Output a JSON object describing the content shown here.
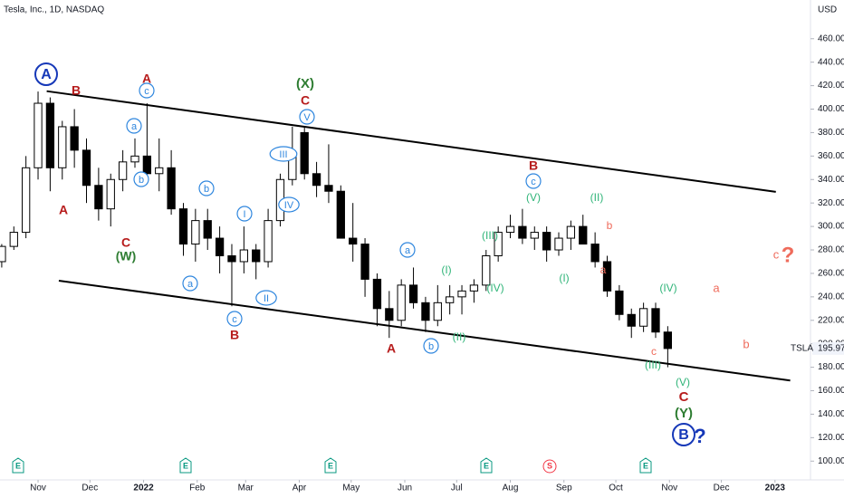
{
  "chart_data": {
    "type": "candlestick",
    "title": "Tesla, Inc., 1D, NASDAQ",
    "currency": "USD",
    "symbol": "TSLA",
    "x": [
      -21,
      -14,
      -7,
      0,
      7,
      14,
      21,
      28,
      35,
      42,
      49,
      56,
      63,
      70,
      77,
      84,
      91,
      98,
      105,
      112,
      119,
      126,
      133,
      140,
      147,
      154,
      161,
      168,
      175,
      182,
      189,
      196,
      203,
      210,
      217,
      224,
      231,
      238,
      245,
      252,
      259,
      266,
      273,
      280,
      287,
      294,
      301,
      308,
      315,
      322,
      329,
      336,
      343,
      350,
      357,
      364
    ],
    "open": [
      270,
      283,
      295,
      350,
      405,
      350,
      385,
      365,
      335,
      315,
      340,
      355,
      360,
      345,
      350,
      315,
      285,
      305,
      290,
      275,
      270,
      280,
      270,
      305,
      340,
      380,
      345,
      335,
      330,
      290,
      285,
      255,
      230,
      220,
      250,
      235,
      220,
      235,
      240,
      245,
      250,
      275,
      295,
      300,
      290,
      295,
      280,
      290,
      300,
      285,
      270,
      245,
      225,
      215,
      230,
      210
    ],
    "high": [
      285,
      300,
      360,
      415,
      410,
      390,
      400,
      375,
      350,
      345,
      365,
      375,
      405,
      375,
      365,
      320,
      315,
      315,
      300,
      285,
      300,
      285,
      315,
      345,
      385,
      385,
      355,
      370,
      335,
      320,
      290,
      260,
      245,
      255,
      265,
      240,
      250,
      250,
      250,
      255,
      280,
      300,
      310,
      315,
      300,
      300,
      295,
      305,
      310,
      295,
      275,
      250,
      230,
      235,
      235,
      215
    ],
    "low": [
      265,
      280,
      290,
      340,
      330,
      340,
      350,
      320,
      305,
      300,
      330,
      350,
      340,
      330,
      310,
      275,
      270,
      280,
      260,
      232,
      260,
      255,
      265,
      300,
      335,
      340,
      325,
      320,
      290,
      270,
      240,
      215,
      205,
      215,
      230,
      210,
      215,
      225,
      225,
      235,
      245,
      270,
      290,
      285,
      280,
      270,
      275,
      280,
      285,
      265,
      240,
      220,
      205,
      210,
      205,
      180
    ],
    "close": [
      283,
      295,
      350,
      405,
      350,
      385,
      365,
      335,
      315,
      340,
      355,
      360,
      345,
      350,
      315,
      285,
      305,
      290,
      275,
      270,
      280,
      270,
      305,
      340,
      360,
      345,
      335,
      330,
      290,
      285,
      255,
      230,
      220,
      250,
      235,
      220,
      235,
      240,
      245,
      250,
      275,
      295,
      300,
      290,
      295,
      280,
      290,
      300,
      285,
      270,
      245,
      225,
      215,
      230,
      210,
      195.97
    ],
    "up_color": "#ffffff",
    "down_color": "#000000",
    "wick_color": "#000000",
    "xlim": [
      -22,
      446
    ],
    "xticks": [
      {
        "value": 0,
        "label": "Nov"
      },
      {
        "value": 30,
        "label": "Dec"
      },
      {
        "value": 61,
        "label": "2022"
      },
      {
        "value": 92,
        "label": "Feb"
      },
      {
        "value": 120,
        "label": "Mar"
      },
      {
        "value": 151,
        "label": "Apr"
      },
      {
        "value": 181,
        "label": "May"
      },
      {
        "value": 212,
        "label": "Jun"
      },
      {
        "value": 242,
        "label": "Jul"
      },
      {
        "value": 273,
        "label": "Aug"
      },
      {
        "value": 304,
        "label": "Sep"
      },
      {
        "value": 334,
        "label": "Oct"
      },
      {
        "value": 365,
        "label": "Nov"
      },
      {
        "value": 395,
        "label": "Dec"
      },
      {
        "value": 426,
        "label": "2023"
      }
    ],
    "ylim": [
      84,
      493
    ],
    "yticks": [
      {
        "value": 100,
        "label": "100.00"
      },
      {
        "value": 120,
        "label": "120.00"
      },
      {
        "value": 140,
        "label": "140.00"
      },
      {
        "value": 160,
        "label": "160.00"
      },
      {
        "value": 180,
        "label": "180.00"
      },
      {
        "value": 200,
        "label": "200.00"
      },
      {
        "value": 220,
        "label": "220.00"
      },
      {
        "value": 240,
        "label": "240.00"
      },
      {
        "value": 260,
        "label": "260.00"
      },
      {
        "value": 280,
        "label": "280.00"
      },
      {
        "value": 300,
        "label": "300.00"
      },
      {
        "value": 320,
        "label": "320.00"
      },
      {
        "value": 340,
        "label": "340.00"
      },
      {
        "value": 360,
        "label": "360.00"
      },
      {
        "value": 380,
        "label": "380.00"
      },
      {
        "value": 400,
        "label": "400.00"
      },
      {
        "value": 420,
        "label": "420.00"
      },
      {
        "value": 440,
        "label": "440.00"
      },
      {
        "value": 460,
        "label": "460.00"
      }
    ],
    "trendlines": [
      {
        "x1": 5,
        "y1": 415.3,
        "x2": 426.5,
        "y2": 329.5
      },
      {
        "x1": 12,
        "y1": 253.8,
        "x2": 434.8,
        "y2": 168.7
      }
    ],
    "annotations": [
      "A",
      "B",
      "A",
      "A",
      "c",
      "a",
      "b",
      "C",
      "(W)",
      "b",
      "a",
      "I",
      "II",
      "c",
      "B",
      "(X)",
      "C",
      "V",
      "III",
      "IV",
      "a",
      "A",
      "b",
      "(I)",
      "(II)",
      "(III)",
      "(IV)",
      "B",
      "c",
      "(V)",
      "(II)",
      "(I)",
      "b",
      "a",
      "(IV)",
      "c",
      "(III)",
      "(V)",
      "C",
      "(Y)",
      "B",
      "?",
      "a",
      "b",
      "c",
      "?"
    ],
    "events": [
      "E",
      "E",
      "E",
      "E",
      "S",
      "E"
    ]
  }
}
